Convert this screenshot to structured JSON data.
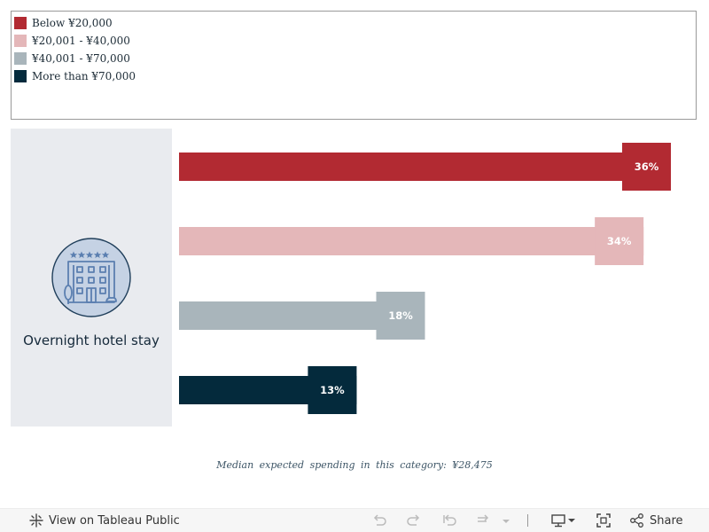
{
  "chart_data": {
    "type": "bar",
    "orientation": "horizontal",
    "category": "Overnight hotel stay",
    "series": [
      {
        "name": "Below ¥20,000",
        "value": 36,
        "label": "36%",
        "color": "#b22a32"
      },
      {
        "name": "¥20,001 - ¥40,000",
        "value": 34,
        "label": "34%",
        "color": "#e4b7b9"
      },
      {
        "name": "¥40,001 - ¥70,000",
        "value": 18,
        "label": "18%",
        "color": "#a9b5bb"
      },
      {
        "name": "More than ¥70,000",
        "value": 13,
        "label": "13%",
        "color": "#042a3c"
      }
    ],
    "xlim": [
      0,
      36
    ],
    "footnote": "Median expected spending in this category: ¥28,475"
  },
  "toolbar": {
    "view_label": "View on Tableau Public",
    "share_label": "Share"
  },
  "icons": {
    "tableau": "tableau-logo-icon",
    "undo": "undo-icon",
    "redo": "redo-icon",
    "revert": "revert-icon",
    "refresh": "refresh-icon",
    "dropdown": "chevron-down-icon",
    "download": "download-icon",
    "fullscreen": "fullscreen-icon",
    "share": "share-icon"
  }
}
